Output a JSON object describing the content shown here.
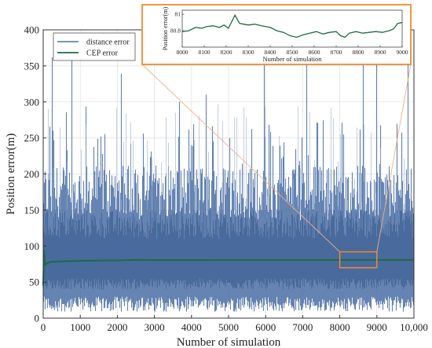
{
  "chart_data": [
    {
      "type": "line",
      "xlabel": "Number of simulation",
      "ylabel": "Position error(m)",
      "xlim": [
        0,
        10000
      ],
      "ylim": [
        0,
        400
      ],
      "x_ticks": [
        0,
        1000,
        2000,
        3000,
        4000,
        5000,
        6000,
        7000,
        8000,
        9000,
        10000
      ],
      "x_tick_labels": [
        "0",
        "1000",
        "2000",
        "3000",
        "4000",
        "5000",
        "6000",
        "7000",
        "8000",
        "9000",
        "10,000"
      ],
      "y_ticks": [
        0,
        50,
        100,
        150,
        200,
        250,
        300,
        350,
        400
      ],
      "grid": true,
      "legend_position": "top-left",
      "series": [
        {
          "name": "distance error",
          "color": "#4a6fa5",
          "style": "dense noisy trace",
          "typical_range": [
            30,
            170
          ],
          "peak_max": 395,
          "mean": 80
        },
        {
          "name": "CEP error",
          "color": "#1d6b45",
          "x": [
            0,
            20,
            50,
            100,
            200,
            400,
            700,
            1000,
            1500,
            2000,
            2500,
            3000,
            4000,
            5000,
            6000,
            7000,
            8000,
            9000,
            10000
          ],
          "values": [
            45,
            95,
            74,
            76,
            78,
            78.5,
            79,
            79.5,
            80,
            80,
            81,
            80.5,
            80.5,
            80.6,
            80.7,
            80.7,
            80.8,
            80.8,
            80.9
          ]
        }
      ],
      "highlight_box": {
        "x_range": [
          8000,
          9000
        ],
        "y_range": [
          70,
          92
        ]
      }
    },
    {
      "type": "line",
      "role": "inset-zoom",
      "xlabel": "Number of simulation",
      "ylabel": "Position error(m)",
      "xlim": [
        8000,
        9000
      ],
      "ylim": [
        80.6,
        81.05
      ],
      "x_ticks": [
        8000,
        8100,
        8200,
        8300,
        8400,
        8500,
        8600,
        8700,
        8800,
        8900,
        9000
      ],
      "y_ticks": [
        80.8,
        81
      ],
      "y_tick_labels": [
        "80.8",
        "81"
      ],
      "series": [
        {
          "name": "CEP error",
          "color": "#1d6b45",
          "x": [
            8000,
            8030,
            8060,
            8090,
            8110,
            8140,
            8170,
            8190,
            8210,
            8225,
            8240,
            8260,
            8280,
            8300,
            8330,
            8360,
            8400,
            8430,
            8460,
            8490,
            8520,
            8550,
            8580,
            8610,
            8640,
            8670,
            8700,
            8720,
            8740,
            8760,
            8790,
            8820,
            8850,
            8880,
            8910,
            8940,
            8960,
            8980,
            9000
          ],
          "values": [
            80.79,
            80.8,
            80.84,
            80.83,
            80.85,
            80.86,
            80.84,
            80.87,
            80.83,
            80.91,
            80.99,
            80.89,
            80.88,
            80.87,
            80.88,
            80.86,
            80.84,
            80.8,
            80.78,
            80.74,
            80.72,
            80.75,
            80.77,
            80.79,
            80.76,
            80.78,
            80.79,
            80.74,
            80.72,
            80.77,
            80.79,
            80.77,
            80.78,
            80.79,
            80.78,
            80.8,
            80.82,
            80.89,
            80.9
          ]
        }
      ]
    }
  ]
}
